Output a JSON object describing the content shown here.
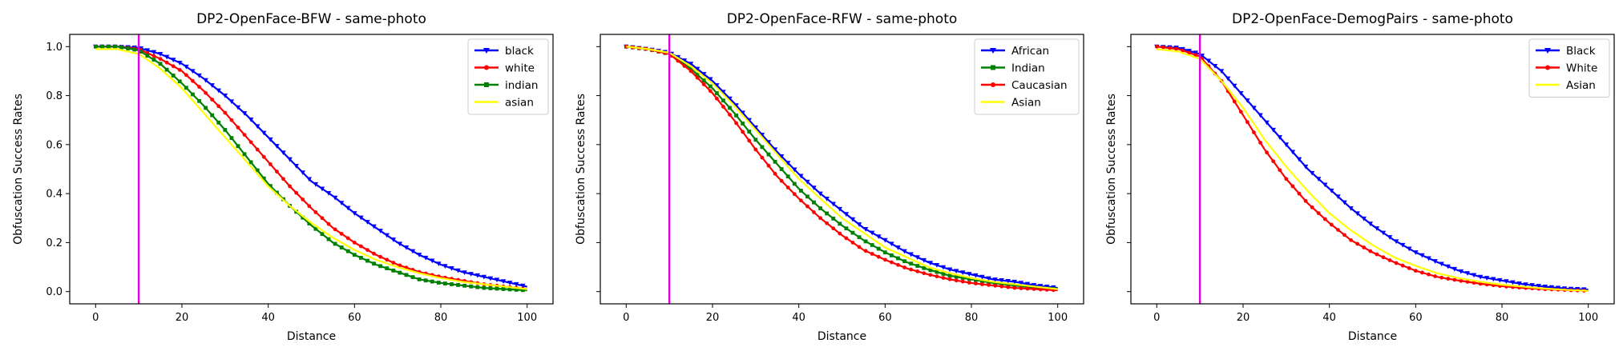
{
  "chart_data": [
    {
      "type": "line",
      "title": "DP2-OpenFace-BFW - same-photo",
      "xlabel": "Distance",
      "ylabel": "Obfuscation Success Rates",
      "xlim": [
        -6,
        106
      ],
      "ylim": [
        -0.05,
        1.05
      ],
      "xticks": [
        0,
        20,
        40,
        60,
        80,
        100
      ],
      "yticks": [
        0.0,
        0.2,
        0.4,
        0.6,
        0.8,
        1.0
      ],
      "ytick_labels_visible": true,
      "legend_position": "top-right",
      "threshold_line": {
        "x": 10,
        "color": "#e000e0"
      },
      "series": [
        {
          "name": "black",
          "color": "#0000ff",
          "marker": "triangle-down",
          "x": [
            0,
            5,
            10,
            15,
            20,
            25,
            30,
            35,
            40,
            45,
            50,
            55,
            60,
            65,
            70,
            75,
            80,
            85,
            90,
            95,
            100
          ],
          "values": [
            1.0,
            1.0,
            0.995,
            0.97,
            0.93,
            0.87,
            0.8,
            0.72,
            0.63,
            0.54,
            0.45,
            0.39,
            0.32,
            0.26,
            0.2,
            0.15,
            0.11,
            0.08,
            0.06,
            0.04,
            0.02
          ]
        },
        {
          "name": "white",
          "color": "#ff0000",
          "marker": "dot",
          "x": [
            0,
            5,
            10,
            15,
            20,
            25,
            30,
            35,
            40,
            45,
            50,
            55,
            60,
            65,
            70,
            75,
            80,
            85,
            90,
            95,
            100
          ],
          "values": [
            1.0,
            1.0,
            0.99,
            0.95,
            0.9,
            0.82,
            0.73,
            0.63,
            0.53,
            0.43,
            0.34,
            0.26,
            0.2,
            0.15,
            0.11,
            0.08,
            0.06,
            0.045,
            0.03,
            0.02,
            0.01
          ]
        },
        {
          "name": "indian",
          "color": "#008000",
          "marker": "square",
          "x": [
            0,
            5,
            10,
            15,
            20,
            25,
            30,
            35,
            40,
            45,
            50,
            55,
            60,
            65,
            70,
            75,
            80,
            85,
            90,
            95,
            100
          ],
          "values": [
            1.0,
            1.0,
            0.985,
            0.93,
            0.85,
            0.76,
            0.66,
            0.55,
            0.44,
            0.35,
            0.27,
            0.2,
            0.15,
            0.11,
            0.08,
            0.05,
            0.035,
            0.025,
            0.015,
            0.01,
            0.005
          ]
        },
        {
          "name": "asian",
          "color": "#ffff00",
          "marker": "none",
          "x": [
            0,
            5,
            10,
            15,
            20,
            25,
            30,
            35,
            40,
            45,
            50,
            55,
            60,
            65,
            70,
            75,
            80,
            85,
            90,
            95,
            100
          ],
          "values": [
            0.99,
            0.99,
            0.97,
            0.91,
            0.83,
            0.73,
            0.63,
            0.53,
            0.43,
            0.35,
            0.28,
            0.22,
            0.17,
            0.13,
            0.1,
            0.075,
            0.055,
            0.04,
            0.03,
            0.02,
            0.01
          ]
        }
      ]
    },
    {
      "type": "line",
      "title": "DP2-OpenFace-RFW - same-photo",
      "xlabel": "Distance",
      "ylabel": "Obfuscation Success Rates",
      "xlim": [
        -6,
        106
      ],
      "ylim": [
        -0.05,
        1.05
      ],
      "xticks": [
        0,
        20,
        40,
        60,
        80,
        100
      ],
      "yticks": [
        0.0,
        0.2,
        0.4,
        0.6,
        0.8,
        1.0
      ],
      "ytick_labels_visible": false,
      "legend_position": "top-right",
      "threshold_line": {
        "x": 10,
        "color": "#e000e0"
      },
      "series": [
        {
          "name": "African",
          "color": "#0000ff",
          "marker": "triangle-down",
          "x": [
            0,
            5,
            10,
            15,
            20,
            25,
            30,
            35,
            40,
            45,
            50,
            55,
            60,
            65,
            70,
            75,
            80,
            85,
            90,
            95,
            100
          ],
          "values": [
            1.0,
            0.99,
            0.975,
            0.93,
            0.86,
            0.77,
            0.67,
            0.57,
            0.48,
            0.4,
            0.33,
            0.26,
            0.21,
            0.16,
            0.12,
            0.09,
            0.07,
            0.05,
            0.04,
            0.025,
            0.015
          ]
        },
        {
          "name": "Indian",
          "color": "#008000",
          "marker": "square",
          "x": [
            0,
            5,
            10,
            15,
            20,
            25,
            30,
            35,
            40,
            45,
            50,
            55,
            60,
            65,
            70,
            75,
            80,
            85,
            90,
            95,
            100
          ],
          "values": [
            1.0,
            0.99,
            0.97,
            0.91,
            0.83,
            0.73,
            0.62,
            0.52,
            0.42,
            0.34,
            0.27,
            0.21,
            0.16,
            0.12,
            0.09,
            0.065,
            0.05,
            0.035,
            0.025,
            0.015,
            0.01
          ]
        },
        {
          "name": "Caucasian",
          "color": "#ff0000",
          "marker": "dot",
          "x": [
            0,
            5,
            10,
            15,
            20,
            25,
            30,
            35,
            40,
            45,
            50,
            55,
            60,
            65,
            70,
            75,
            80,
            85,
            90,
            95,
            100
          ],
          "values": [
            1.0,
            0.99,
            0.97,
            0.9,
            0.81,
            0.7,
            0.58,
            0.47,
            0.38,
            0.3,
            0.23,
            0.17,
            0.13,
            0.095,
            0.07,
            0.05,
            0.035,
            0.025,
            0.015,
            0.01,
            0.005
          ]
        },
        {
          "name": "Asian",
          "color": "#ffff00",
          "marker": "none",
          "x": [
            0,
            5,
            10,
            15,
            20,
            25,
            30,
            35,
            40,
            45,
            50,
            55,
            60,
            65,
            70,
            75,
            80,
            85,
            90,
            95,
            100
          ],
          "values": [
            1.0,
            0.99,
            0.975,
            0.92,
            0.85,
            0.76,
            0.66,
            0.56,
            0.46,
            0.38,
            0.3,
            0.24,
            0.18,
            0.14,
            0.1,
            0.075,
            0.055,
            0.04,
            0.03,
            0.02,
            0.01
          ]
        }
      ]
    },
    {
      "type": "line",
      "title": "DP2-OpenFace-DemogPairs - same-photo",
      "xlabel": "Distance",
      "ylabel": "Obfuscation Success Rates",
      "xlim": [
        -6,
        106
      ],
      "ylim": [
        -0.05,
        1.05
      ],
      "xticks": [
        0,
        20,
        40,
        60,
        80,
        100
      ],
      "yticks": [
        0.0,
        0.2,
        0.4,
        0.6,
        0.8,
        1.0
      ],
      "ytick_labels_visible": false,
      "legend_position": "top-right",
      "threshold_line": {
        "x": 10,
        "color": "#e000e0"
      },
      "series": [
        {
          "name": "Black",
          "color": "#0000ff",
          "marker": "triangle-down",
          "x": [
            0,
            5,
            10,
            15,
            20,
            25,
            30,
            35,
            40,
            45,
            50,
            55,
            60,
            65,
            70,
            75,
            80,
            85,
            90,
            95,
            100
          ],
          "values": [
            1.0,
            0.995,
            0.97,
            0.9,
            0.8,
            0.7,
            0.6,
            0.5,
            0.42,
            0.34,
            0.27,
            0.21,
            0.16,
            0.12,
            0.085,
            0.06,
            0.045,
            0.03,
            0.02,
            0.012,
            0.008
          ]
        },
        {
          "name": "White",
          "color": "#ff0000",
          "marker": "dot",
          "x": [
            0,
            5,
            10,
            15,
            20,
            25,
            30,
            35,
            40,
            45,
            50,
            55,
            60,
            65,
            70,
            75,
            80,
            85,
            90,
            95,
            100
          ],
          "values": [
            1.0,
            0.99,
            0.96,
            0.86,
            0.72,
            0.58,
            0.46,
            0.36,
            0.28,
            0.21,
            0.16,
            0.12,
            0.085,
            0.06,
            0.045,
            0.032,
            0.022,
            0.015,
            0.01,
            0.006,
            0.003
          ]
        },
        {
          "name": "Asian",
          "color": "#ffff00",
          "marker": "none",
          "x": [
            0,
            5,
            10,
            15,
            20,
            25,
            30,
            35,
            40,
            45,
            50,
            55,
            60,
            65,
            70,
            75,
            80,
            85,
            90,
            95,
            100
          ],
          "values": [
            0.99,
            0.98,
            0.95,
            0.86,
            0.75,
            0.62,
            0.51,
            0.41,
            0.32,
            0.25,
            0.19,
            0.14,
            0.105,
            0.075,
            0.055,
            0.04,
            0.028,
            0.02,
            0.012,
            0.007,
            0.003
          ]
        }
      ]
    }
  ]
}
